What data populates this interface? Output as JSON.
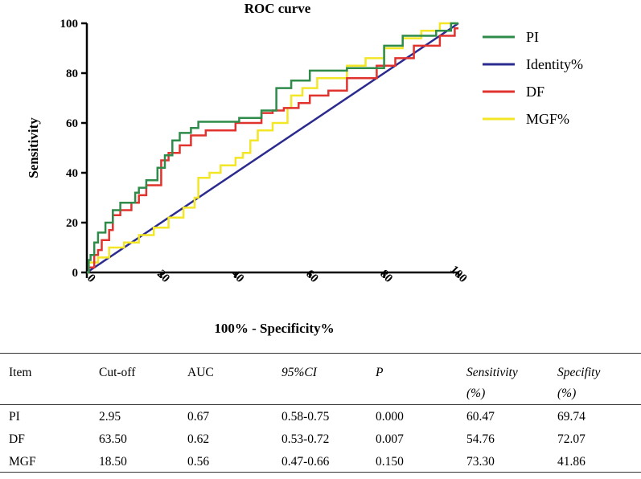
{
  "chart_data": {
    "type": "line",
    "title": "ROC curve",
    "xlabel": "100% - Specificity%",
    "ylabel": "Sensitivity",
    "xlim": [
      0,
      100
    ],
    "ylim": [
      0,
      100
    ],
    "xticks": [
      "0",
      "20",
      "40",
      "60",
      "80",
      "100"
    ],
    "yticks": [
      "0",
      "20",
      "40",
      "60",
      "80",
      "100"
    ],
    "legend_position": "right",
    "series": [
      {
        "name": "PI",
        "color": "#2e8b4a",
        "x": [
          0,
          0.5,
          0.5,
          1,
          1,
          2,
          2,
          3,
          3,
          5,
          5,
          7,
          7,
          9,
          9,
          13,
          13,
          14,
          14,
          16,
          16,
          19,
          19,
          21,
          21,
          23,
          23,
          25,
          25,
          28,
          28,
          30,
          30,
          41,
          41,
          47,
          47,
          51,
          51,
          55,
          55,
          60,
          60,
          70,
          70,
          80,
          80,
          85,
          85,
          94,
          94,
          98,
          98,
          100
        ],
        "y": [
          0,
          0,
          5,
          5,
          7,
          7,
          12,
          12,
          16,
          16,
          20,
          20,
          25,
          25,
          28,
          28,
          32,
          32,
          34,
          34,
          37,
          37,
          42,
          42,
          47,
          47,
          53,
          53,
          56,
          56,
          58,
          58,
          60.5,
          60.5,
          62,
          62,
          65,
          65,
          74,
          74,
          77,
          77,
          81,
          81,
          82,
          82,
          91,
          91,
          95,
          95,
          97,
          97,
          100,
          100
        ]
      },
      {
        "name": "Identity%",
        "color": "#2b2b8f",
        "x": [
          0,
          100
        ],
        "y": [
          0,
          100
        ]
      },
      {
        "name": "DF",
        "color": "#e0332e",
        "x": [
          0,
          0.5,
          0.5,
          2,
          2,
          3,
          3,
          4,
          4,
          6,
          6,
          7,
          7,
          9,
          9,
          12,
          12,
          14,
          14,
          16,
          16,
          20,
          20,
          22,
          22,
          25,
          25,
          28,
          28,
          32,
          32,
          40,
          40,
          47,
          47,
          50,
          50,
          53,
          53,
          57,
          57,
          60,
          60,
          65,
          65,
          70,
          70,
          78,
          78,
          83,
          83,
          88,
          88,
          95,
          95,
          99,
          99,
          100
        ],
        "y": [
          0,
          0,
          2,
          2,
          7,
          7,
          9,
          9,
          13,
          13,
          17,
          17,
          23,
          23,
          25,
          25,
          28,
          28,
          31,
          31,
          35,
          35,
          45,
          45,
          48,
          48,
          51,
          51,
          55,
          55,
          57,
          57,
          60,
          60,
          64,
          64,
          65,
          65,
          66,
          66,
          68,
          68,
          71,
          71,
          73,
          73,
          78,
          78,
          83,
          83,
          86,
          86,
          91,
          91,
          95,
          95,
          98,
          98
        ]
      },
      {
        "name": "MGF%",
        "color": "#f2e627",
        "x": [
          0,
          0.5,
          0.5,
          3,
          3,
          6,
          6,
          10,
          10,
          14,
          14,
          18,
          18,
          22,
          22,
          26,
          26,
          29,
          29,
          30,
          30,
          33,
          33,
          36,
          36,
          40,
          40,
          42,
          42,
          44,
          44,
          46,
          46,
          50,
          50,
          54,
          54,
          55,
          55,
          58,
          58,
          62,
          62,
          70,
          70,
          75,
          75,
          80,
          80,
          85,
          85,
          90,
          90,
          95,
          95,
          100
        ],
        "y": [
          0,
          0,
          4,
          4,
          6,
          6,
          10,
          10,
          12,
          12,
          15,
          15,
          18,
          18,
          22,
          22,
          26,
          26,
          30,
          30,
          38,
          38,
          40,
          40,
          43,
          43,
          46,
          46,
          48,
          48,
          53,
          53,
          57,
          57,
          60,
          60,
          66,
          66,
          71,
          71,
          74,
          74,
          78,
          78,
          83,
          83,
          86,
          86,
          90,
          90,
          94,
          94,
          97,
          97,
          100,
          100
        ]
      }
    ]
  },
  "table": {
    "headers": [
      {
        "text": "Item",
        "sub": "",
        "italic": false
      },
      {
        "text": "Cut-off",
        "sub": "",
        "italic": false
      },
      {
        "text": "AUC",
        "sub": "",
        "italic": false
      },
      {
        "text": "95%CI",
        "sub": "",
        "italic": true
      },
      {
        "text": "P",
        "sub": "",
        "italic": true
      },
      {
        "text": "Sensitivity",
        "sub": "(%)",
        "italic": true
      },
      {
        "text": "Specifity",
        "sub": "(%)",
        "italic": true
      }
    ],
    "rows": [
      [
        "PI",
        "2.95",
        "0.67",
        "0.58-0.75",
        "0.000",
        "60.47",
        "69.74"
      ],
      [
        "DF",
        "63.50",
        "0.62",
        "0.53-0.72",
        "0.007",
        "54.76",
        "72.07"
      ],
      [
        "MGF",
        "18.50",
        "0.56",
        "0.47-0.66",
        "0.150",
        "73.30",
        "41.86"
      ]
    ]
  }
}
